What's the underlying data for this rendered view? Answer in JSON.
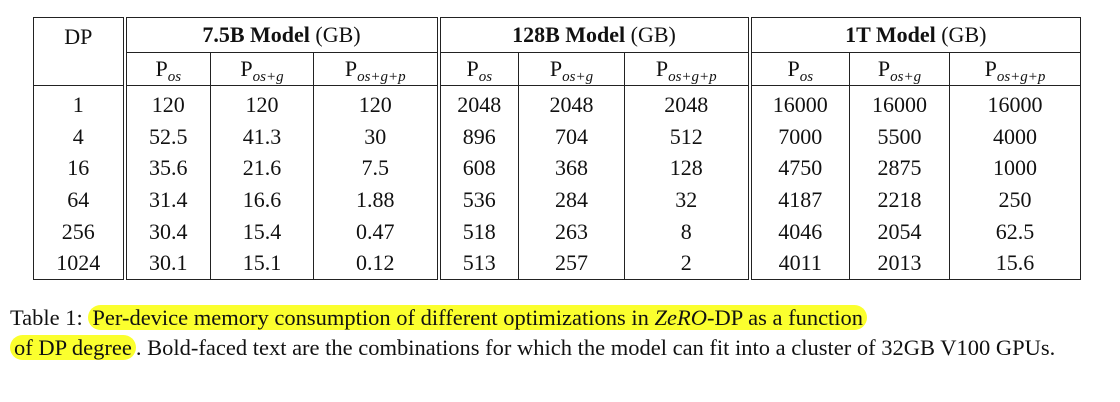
{
  "table": {
    "dp_header": "DP",
    "groups": [
      {
        "title_bold": "7.5B Model",
        "title_unit": "(GB)"
      },
      {
        "title_bold": "128B Model",
        "title_unit": "(GB)"
      },
      {
        "title_bold": "1T Model",
        "title_unit": "(GB)"
      }
    ],
    "subheaders": [
      {
        "base": "P",
        "sub": "os"
      },
      {
        "base": "P",
        "sub": "os+g"
      },
      {
        "base": "P",
        "sub": "os+g+p"
      }
    ],
    "rows": [
      {
        "dp": "1",
        "cells": [
          "120",
          "120",
          "120",
          "2048",
          "2048",
          "2048",
          "16000",
          "16000",
          "16000"
        ],
        "bold": []
      },
      {
        "dp": "4",
        "cells": [
          "52.5",
          "41.3",
          "30",
          "896",
          "704",
          "512",
          "7000",
          "5500",
          "4000"
        ],
        "bold": [
          2
        ]
      },
      {
        "dp": "16",
        "cells": [
          "35.6",
          "21.6",
          "7.5",
          "608",
          "368",
          "128",
          "4750",
          "2875",
          "1000"
        ],
        "bold": [
          1
        ]
      },
      {
        "dp": "64",
        "cells": [
          "31.4",
          "16.6",
          "1.88",
          "536",
          "284",
          "32",
          "4187",
          "2218",
          "250"
        ],
        "bold": [
          0,
          5
        ]
      },
      {
        "dp": "256",
        "cells": [
          "30.4",
          "15.4",
          "0.47",
          "518",
          "263",
          "8",
          "4046",
          "2054",
          "62.5"
        ],
        "bold": []
      },
      {
        "dp": "1024",
        "cells": [
          "30.1",
          "15.1",
          "0.12",
          "513",
          "257",
          "2",
          "4011",
          "2013",
          "15.6"
        ],
        "bold": [
          8
        ]
      }
    ]
  },
  "caption": {
    "label": "Table 1: ",
    "highlight_part1": "Per-device memory consumption of different optimizations in ",
    "highlight_italic": "ZeRO",
    "highlight_part2": "-DP as a function",
    "highlight_part3": "of DP degree",
    "rest": ". Bold-faced text are the combinations for which the model can fit into a cluster of 32GB V100 GPUs.",
    "highlight_color": "#fbff2e"
  }
}
